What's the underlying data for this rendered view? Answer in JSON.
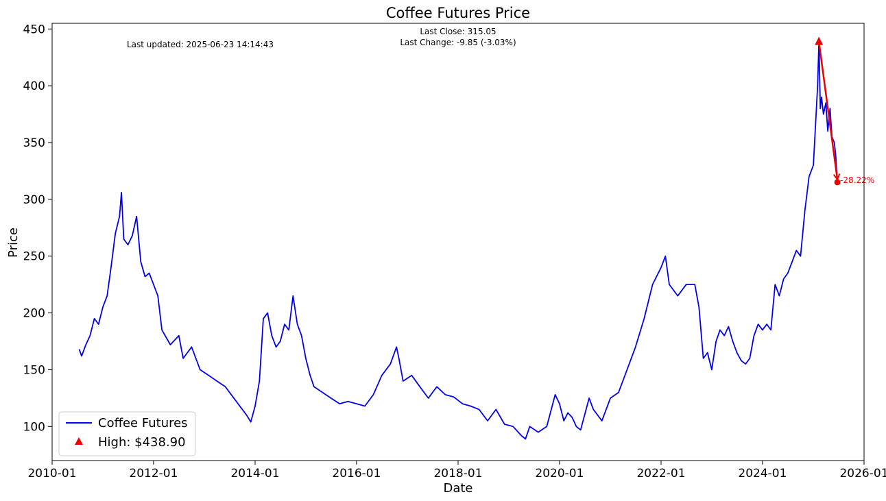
{
  "chart_data": {
    "type": "line",
    "title": "Coffee Futures Price",
    "xlabel": "Date",
    "ylabel": "Price",
    "xlim": [
      "2010-01-01",
      "2026-01-01"
    ],
    "ylim": [
      70,
      455
    ],
    "x_ticks": [
      "2010-01",
      "2012-01",
      "2014-01",
      "2016-01",
      "2018-01",
      "2020-01",
      "2022-01",
      "2024-01",
      "2026-01"
    ],
    "y_ticks": [
      100,
      150,
      200,
      250,
      300,
      350,
      400,
      450
    ],
    "grid": false,
    "legend_position": "lower-left",
    "annotations": {
      "last_updated": "Last updated: 2025-06-23 14:14:43",
      "last_close": "Last Close: 315.05",
      "last_change": "Last Change: -9.85 (-3.03%)"
    },
    "series": [
      {
        "name": "Coffee Futures",
        "color": "#0000ee",
        "points": [
          [
            "2010-07-15",
            168
          ],
          [
            "2010-08-01",
            162
          ],
          [
            "2010-09-01",
            172
          ],
          [
            "2010-10-01",
            180
          ],
          [
            "2010-11-01",
            195
          ],
          [
            "2010-12-01",
            190
          ],
          [
            "2011-01-01",
            205
          ],
          [
            "2011-02-01",
            215
          ],
          [
            "2011-03-01",
            240
          ],
          [
            "2011-04-01",
            270
          ],
          [
            "2011-05-01",
            285
          ],
          [
            "2011-05-15",
            306
          ],
          [
            "2011-06-01",
            265
          ],
          [
            "2011-07-01",
            260
          ],
          [
            "2011-08-01",
            268
          ],
          [
            "2011-09-01",
            285
          ],
          [
            "2011-10-01",
            245
          ],
          [
            "2011-11-01",
            232
          ],
          [
            "2011-12-01",
            235
          ],
          [
            "2012-01-01",
            225
          ],
          [
            "2012-02-01",
            215
          ],
          [
            "2012-03-01",
            185
          ],
          [
            "2012-05-01",
            172
          ],
          [
            "2012-07-01",
            180
          ],
          [
            "2012-08-01",
            160
          ],
          [
            "2012-10-01",
            170
          ],
          [
            "2012-12-01",
            150
          ],
          [
            "2013-02-01",
            145
          ],
          [
            "2013-04-01",
            140
          ],
          [
            "2013-06-01",
            135
          ],
          [
            "2013-08-01",
            125
          ],
          [
            "2013-10-01",
            115
          ],
          [
            "2013-11-01",
            110
          ],
          [
            "2013-12-01",
            104
          ],
          [
            "2014-01-01",
            118
          ],
          [
            "2014-02-01",
            140
          ],
          [
            "2014-03-01",
            195
          ],
          [
            "2014-04-01",
            200
          ],
          [
            "2014-05-01",
            180
          ],
          [
            "2014-06-01",
            170
          ],
          [
            "2014-07-01",
            175
          ],
          [
            "2014-08-01",
            190
          ],
          [
            "2014-09-01",
            185
          ],
          [
            "2014-10-01",
            215
          ],
          [
            "2014-11-01",
            190
          ],
          [
            "2014-12-01",
            180
          ],
          [
            "2015-01-01",
            160
          ],
          [
            "2015-02-01",
            145
          ],
          [
            "2015-03-01",
            135
          ],
          [
            "2015-05-01",
            130
          ],
          [
            "2015-07-01",
            125
          ],
          [
            "2015-09-01",
            120
          ],
          [
            "2015-11-01",
            122
          ],
          [
            "2016-01-01",
            120
          ],
          [
            "2016-03-01",
            118
          ],
          [
            "2016-05-01",
            128
          ],
          [
            "2016-07-01",
            145
          ],
          [
            "2016-09-01",
            155
          ],
          [
            "2016-10-15",
            170
          ],
          [
            "2016-11-01",
            160
          ],
          [
            "2016-12-01",
            140
          ],
          [
            "2017-02-01",
            145
          ],
          [
            "2017-04-01",
            135
          ],
          [
            "2017-06-01",
            125
          ],
          [
            "2017-08-01",
            135
          ],
          [
            "2017-10-01",
            128
          ],
          [
            "2017-12-01",
            126
          ],
          [
            "2018-02-01",
            120
          ],
          [
            "2018-04-01",
            118
          ],
          [
            "2018-06-01",
            115
          ],
          [
            "2018-08-01",
            105
          ],
          [
            "2018-10-01",
            115
          ],
          [
            "2018-12-01",
            102
          ],
          [
            "2019-02-01",
            100
          ],
          [
            "2019-04-01",
            92
          ],
          [
            "2019-05-01",
            89
          ],
          [
            "2019-06-01",
            100
          ],
          [
            "2019-08-01",
            95
          ],
          [
            "2019-10-01",
            100
          ],
          [
            "2019-12-01",
            128
          ],
          [
            "2020-01-01",
            120
          ],
          [
            "2020-02-01",
            105
          ],
          [
            "2020-03-01",
            112
          ],
          [
            "2020-04-01",
            108
          ],
          [
            "2020-05-01",
            100
          ],
          [
            "2020-06-01",
            97
          ],
          [
            "2020-08-01",
            125
          ],
          [
            "2020-09-01",
            115
          ],
          [
            "2020-11-01",
            105
          ],
          [
            "2021-01-01",
            125
          ],
          [
            "2021-03-01",
            130
          ],
          [
            "2021-05-01",
            150
          ],
          [
            "2021-07-01",
            170
          ],
          [
            "2021-09-01",
            195
          ],
          [
            "2021-11-01",
            225
          ],
          [
            "2022-01-01",
            240
          ],
          [
            "2022-02-01",
            250
          ],
          [
            "2022-03-01",
            225
          ],
          [
            "2022-05-01",
            215
          ],
          [
            "2022-07-01",
            225
          ],
          [
            "2022-09-01",
            225
          ],
          [
            "2022-10-01",
            205
          ],
          [
            "2022-11-01",
            160
          ],
          [
            "2022-12-01",
            165
          ],
          [
            "2023-01-01",
            150
          ],
          [
            "2023-02-01",
            175
          ],
          [
            "2023-03-01",
            185
          ],
          [
            "2023-04-01",
            180
          ],
          [
            "2023-05-01",
            188
          ],
          [
            "2023-06-01",
            175
          ],
          [
            "2023-07-01",
            165
          ],
          [
            "2023-08-01",
            158
          ],
          [
            "2023-09-01",
            155
          ],
          [
            "2023-10-01",
            160
          ],
          [
            "2023-11-01",
            180
          ],
          [
            "2023-12-01",
            190
          ],
          [
            "2024-01-01",
            185
          ],
          [
            "2024-02-01",
            190
          ],
          [
            "2024-03-01",
            185
          ],
          [
            "2024-04-01",
            225
          ],
          [
            "2024-05-01",
            215
          ],
          [
            "2024-06-01",
            230
          ],
          [
            "2024-07-01",
            235
          ],
          [
            "2024-08-01",
            245
          ],
          [
            "2024-09-01",
            255
          ],
          [
            "2024-10-01",
            250
          ],
          [
            "2024-11-01",
            290
          ],
          [
            "2024-12-01",
            320
          ],
          [
            "2025-01-01",
            330
          ],
          [
            "2025-02-01",
            400
          ],
          [
            "2025-02-10",
            438.9
          ],
          [
            "2025-02-20",
            380
          ],
          [
            "2025-03-01",
            390
          ],
          [
            "2025-03-15",
            375
          ],
          [
            "2025-04-01",
            385
          ],
          [
            "2025-04-15",
            360
          ],
          [
            "2025-05-01",
            380
          ],
          [
            "2025-05-15",
            355
          ],
          [
            "2025-06-01",
            350
          ],
          [
            "2025-06-10",
            340
          ],
          [
            "2025-06-23",
            315.05
          ]
        ]
      }
    ],
    "high_marker": {
      "label": "High: $438.90",
      "date": "2025-02-10",
      "value": 438.9,
      "color": "#ee0000"
    },
    "last_marker": {
      "date": "2025-06-23",
      "value": 315.05,
      "change_label": "-28.22%",
      "color": "#ee0000"
    }
  }
}
